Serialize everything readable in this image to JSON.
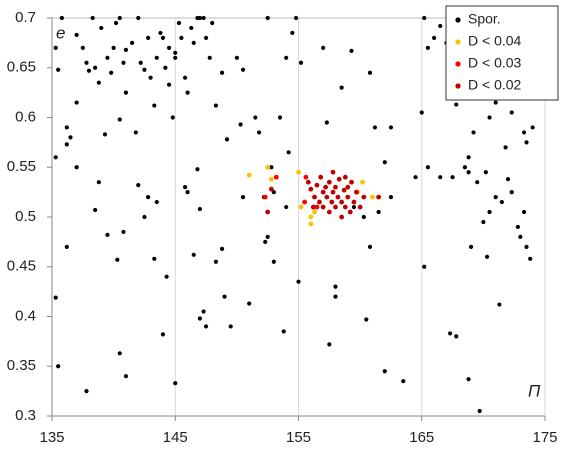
{
  "chart_data": {
    "type": "scatter",
    "x_label": "Π",
    "y_label": "e",
    "xlim": [
      135,
      175
    ],
    "ylim": [
      0.3,
      0.7
    ],
    "xticks": [
      135,
      145,
      155,
      165,
      175
    ],
    "yticks": [
      0.3,
      0.35,
      0.4,
      0.45,
      0.5,
      0.55,
      0.6,
      0.65,
      0.7
    ],
    "grid": true,
    "legend": "upper right",
    "series": [
      {
        "name": "Spor.",
        "color": "#000000",
        "x": [
          135.3,
          135.5,
          135.8,
          136.2,
          136.5,
          137,
          137,
          137.5,
          137.8,
          138,
          138.3,
          138.5,
          138.8,
          139,
          139.3,
          139.5,
          139.8,
          140,
          140.2,
          140.5,
          140.5,
          140.8,
          141,
          141,
          141.5,
          141.8,
          142,
          142.2,
          142.5,
          142.8,
          143,
          143.3,
          143.5,
          143.8,
          144,
          144.2,
          144.5,
          144.5,
          144.8,
          145,
          145,
          145.3,
          145.5,
          145.8,
          146,
          146.3,
          146.5,
          146.8,
          147,
          147.3,
          147.5,
          147.8,
          148,
          148.3,
          148.8,
          149.2,
          150,
          150.3,
          150.5,
          151.5,
          151.8,
          152.5,
          152.8,
          153.5,
          154,
          154.5,
          154.8,
          155.2,
          157,
          157.3,
          158.5,
          159.3,
          160.8,
          161.2,
          162.5,
          165,
          165.2,
          165.5,
          166,
          166.5,
          167,
          167.2,
          167.8,
          168.3,
          168.8,
          169.2,
          169.5,
          170.5,
          171,
          171.8,
          172.3,
          173.3,
          173.5,
          174,
          135.3,
          135.3,
          136.2,
          136.2,
          137,
          138.5,
          138.8,
          139.5,
          140.3,
          140.8,
          142,
          142.5,
          142.8,
          143.3,
          143.5,
          144.3,
          145.8,
          146,
          146.8,
          146.5,
          147,
          148.3,
          148.8,
          149,
          150.5,
          151,
          152.2,
          152.3,
          152.5,
          153,
          153,
          154,
          154.2,
          159.5,
          160.3,
          160.8,
          161.5,
          162,
          162.5,
          164.5,
          165.2,
          165.5,
          166.5,
          167.5,
          168.5,
          168.8,
          169.5,
          170.2,
          170.5,
          170,
          171,
          171.5,
          172,
          172.3,
          172.8,
          173,
          173.3,
          173.5,
          173.8,
          170.3,
          169,
          135.5,
          137.8,
          140.5,
          141,
          144,
          145,
          147,
          147.3,
          147.5,
          149.5,
          153.8,
          157.5,
          158,
          160.5,
          162,
          163.5,
          167.3,
          167.8,
          168.8,
          169.7,
          171.3,
          155,
          158
        ],
        "values": [
          0.67,
          0.648,
          0.7,
          0.59,
          0.58,
          0.615,
          0.683,
          0.67,
          0.655,
          0.647,
          0.7,
          0.65,
          0.635,
          0.69,
          0.583,
          0.66,
          0.645,
          0.67,
          0.695,
          0.598,
          0.7,
          0.655,
          0.625,
          0.668,
          0.675,
          0.585,
          0.7,
          0.655,
          0.648,
          0.68,
          0.64,
          0.612,
          0.66,
          0.685,
          0.68,
          0.65,
          0.67,
          0.633,
          0.6,
          0.665,
          0.66,
          0.695,
          0.68,
          0.64,
          0.625,
          0.69,
          0.675,
          0.7,
          0.7,
          0.7,
          0.68,
          0.66,
          0.695,
          0.612,
          0.645,
          0.578,
          0.66,
          0.593,
          0.648,
          0.6,
          0.585,
          0.7,
          0.55,
          0.6,
          0.66,
          0.685,
          0.7,
          0.655,
          0.67,
          0.595,
          0.63,
          0.667,
          0.645,
          0.59,
          0.59,
          0.605,
          0.7,
          0.67,
          0.68,
          0.692,
          0.675,
          0.645,
          0.613,
          0.7,
          0.56,
          0.585,
          0.635,
          0.6,
          0.615,
          0.57,
          0.605,
          0.585,
          0.575,
          0.59,
          0.56,
          0.419,
          0.573,
          0.47,
          0.55,
          0.507,
          0.535,
          0.482,
          0.457,
          0.485,
          0.532,
          0.5,
          0.52,
          0.458,
          0.515,
          0.44,
          0.53,
          0.525,
          0.548,
          0.462,
          0.508,
          0.455,
          0.468,
          0.42,
          0.52,
          0.413,
          0.52,
          0.475,
          0.48,
          0.455,
          0.525,
          0.51,
          0.565,
          0.51,
          0.5,
          0.47,
          0.505,
          0.555,
          0.52,
          0.54,
          0.45,
          0.55,
          0.54,
          0.54,
          0.55,
          0.545,
          0.535,
          0.545,
          0.505,
          0.495,
          0.52,
          0.515,
          0.538,
          0.525,
          0.49,
          0.48,
          0.505,
          0.47,
          0.458,
          0.46,
          0.47,
          0.35,
          0.325,
          0.363,
          0.34,
          0.382,
          0.333,
          0.398,
          0.405,
          0.39,
          0.39,
          0.385,
          0.372,
          0.42,
          0.397,
          0.345,
          0.335,
          0.383,
          0.38,
          0.337,
          0.305,
          0.412,
          0.435,
          0.43
        ]
      },
      {
        "name": "D < 0.04",
        "color": "#ffc000",
        "x": [
          151,
          152.5,
          152.8,
          155,
          155.2,
          156,
          156,
          156.3,
          160.2,
          161,
          159.8
        ],
        "values": [
          0.542,
          0.55,
          0.538,
          0.545,
          0.51,
          0.5,
          0.493,
          0.505,
          0.535,
          0.52,
          0.525
        ]
      },
      {
        "name": "D < 0.03",
        "color": "#ff0000",
        "x": [
          152.3,
          153.2,
          155.6,
          156.5,
          155.5
        ],
        "values": [
          0.52,
          0.54,
          0.54,
          0.51,
          0.515
        ]
      },
      {
        "name": "D < 0.02",
        "color": "#c00000",
        "x": [
          155.8,
          156,
          156.3,
          156.5,
          156.7,
          156.8,
          157,
          157,
          157.2,
          157.3,
          157.5,
          157.5,
          157.7,
          157.8,
          158,
          158,
          158.2,
          158.3,
          158.5,
          158.5,
          158.7,
          158.8,
          159,
          159,
          159.2,
          159.3,
          159.5,
          159.7,
          160,
          160.3,
          156.2,
          157.8,
          158.8,
          161.5,
          152.8,
          152.5
        ],
        "values": [
          0.535,
          0.528,
          0.52,
          0.532,
          0.515,
          0.54,
          0.525,
          0.51,
          0.53,
          0.52,
          0.505,
          0.535,
          0.515,
          0.525,
          0.51,
          0.53,
          0.52,
          0.538,
          0.515,
          0.5,
          0.527,
          0.51,
          0.53,
          0.52,
          0.505,
          0.535,
          0.515,
          0.525,
          0.51,
          0.52,
          0.51,
          0.545,
          0.54,
          0.52,
          0.528,
          0.505
        ]
      }
    ]
  }
}
